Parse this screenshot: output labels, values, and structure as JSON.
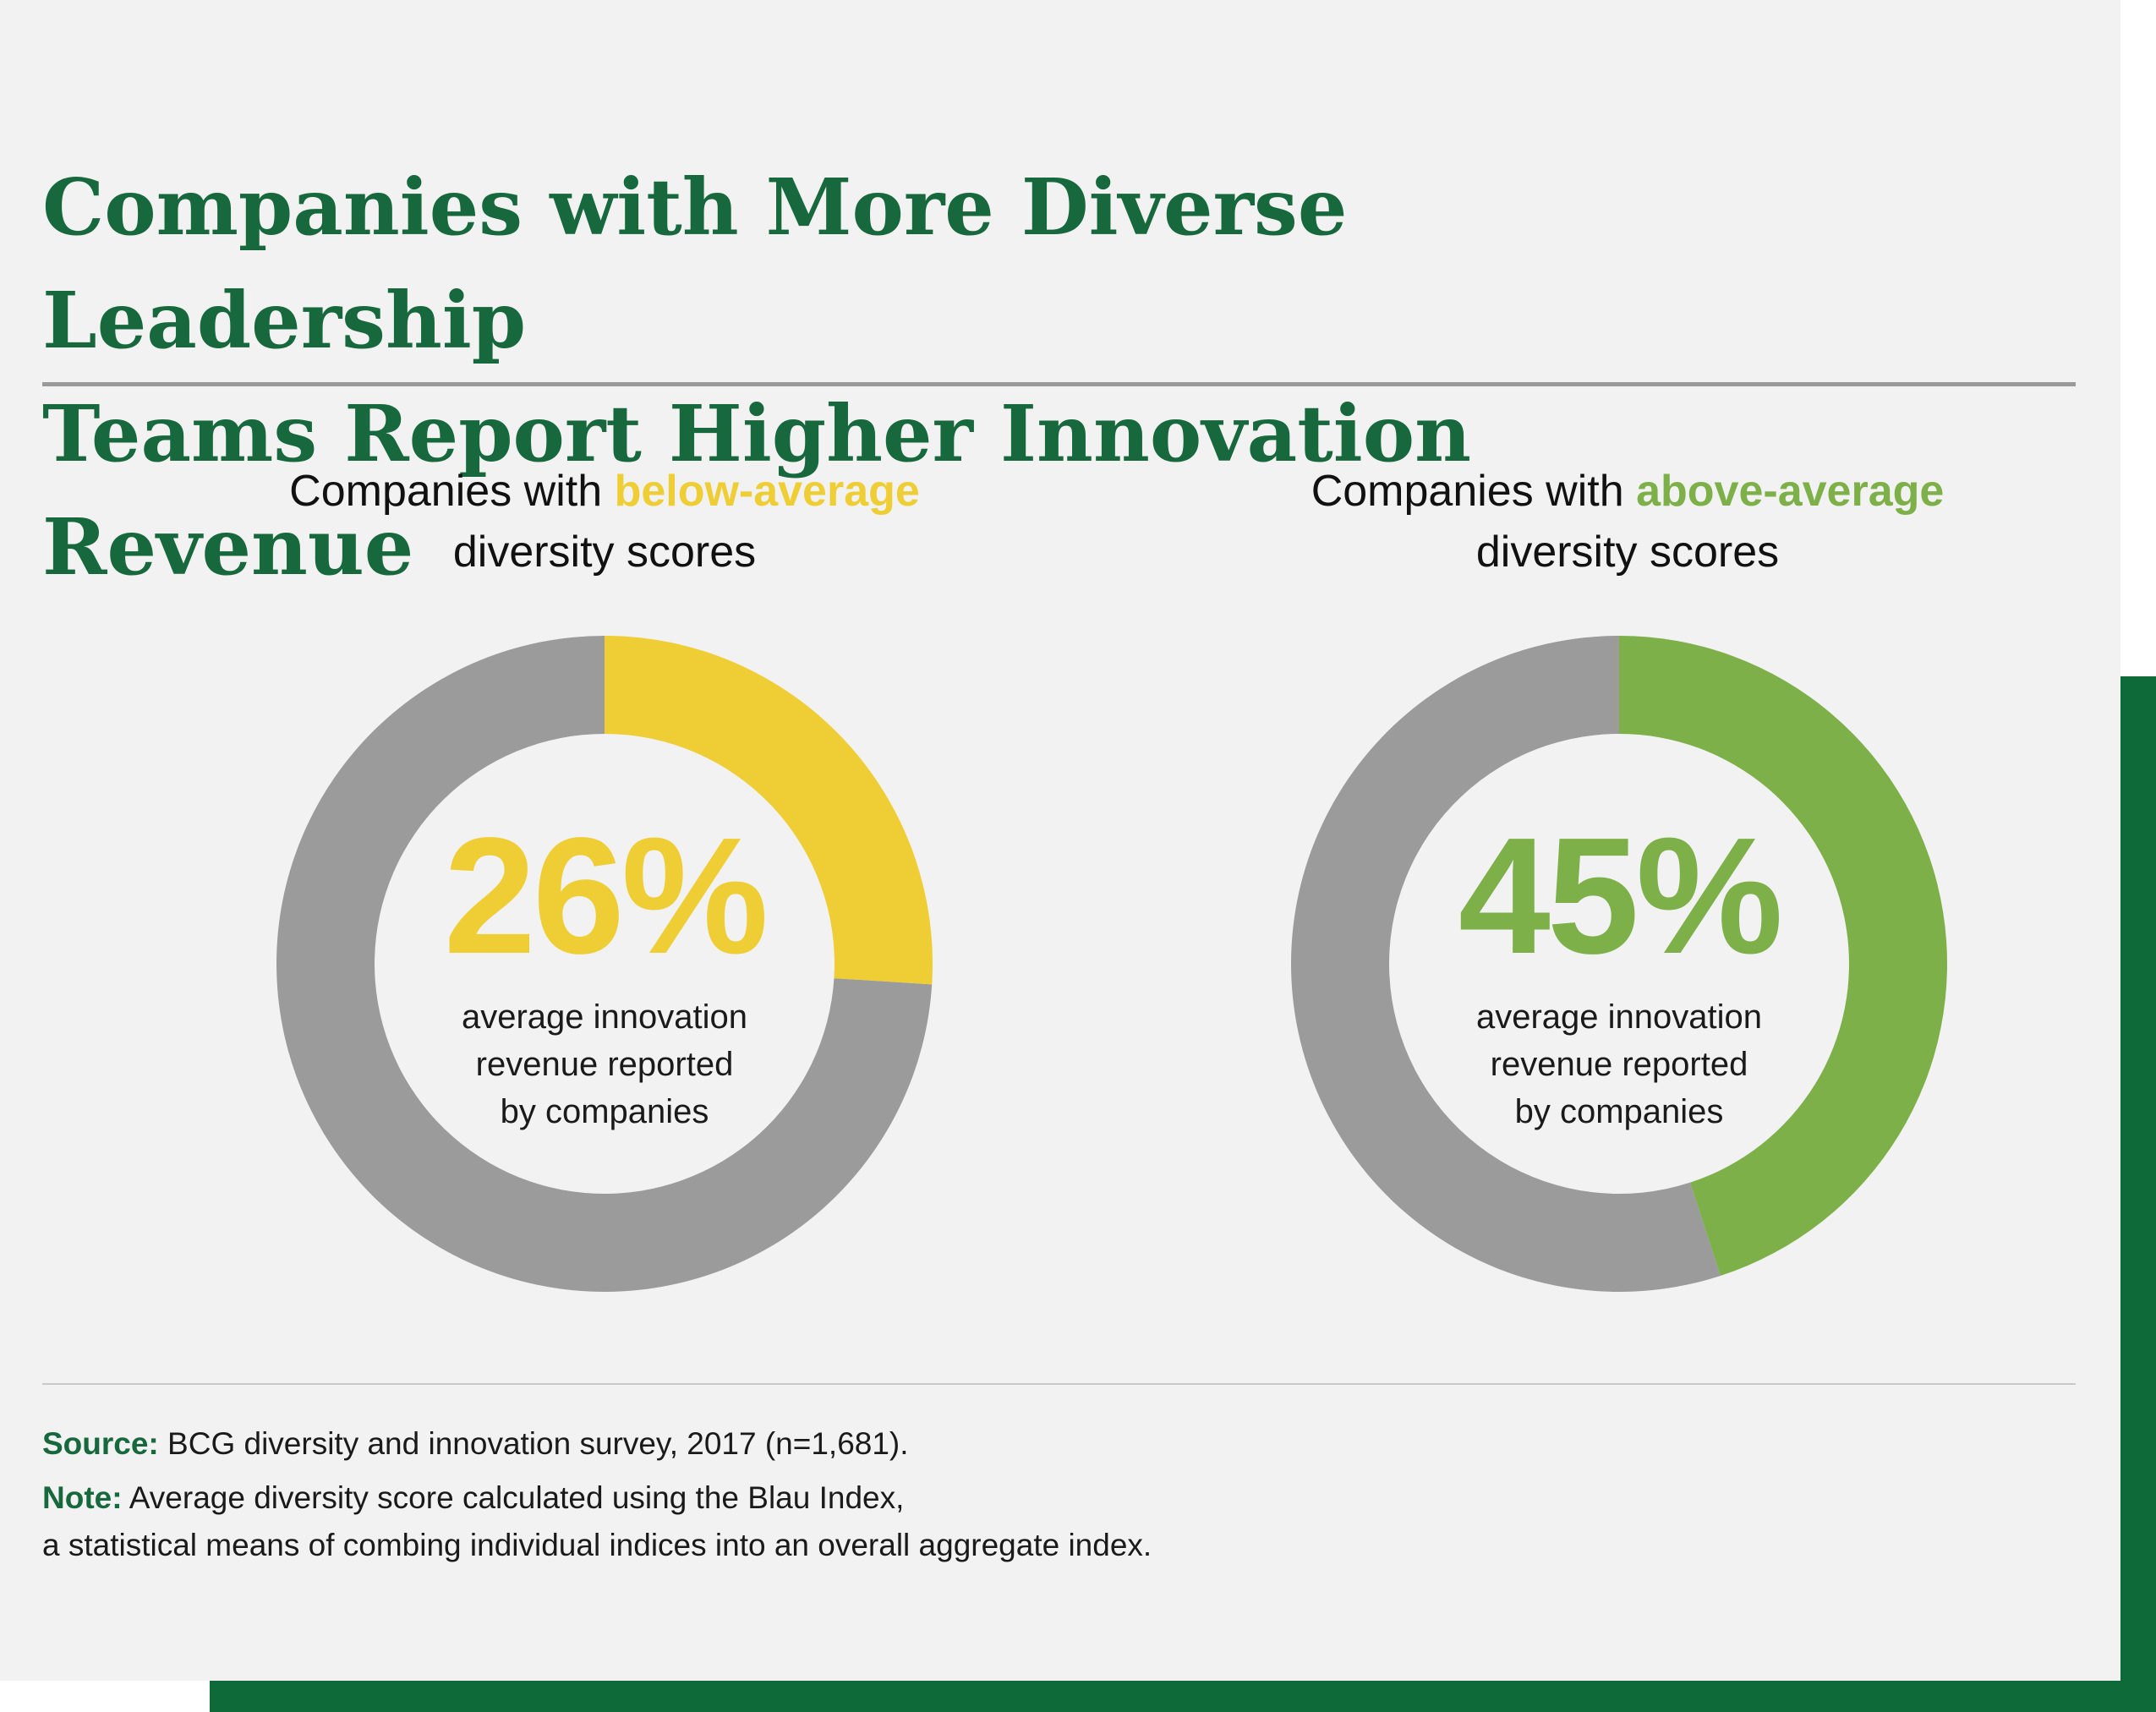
{
  "title": {
    "line1": "Companies with More Diverse Leadership",
    "line2": "Teams Report Higher Innovation Revenue"
  },
  "colors": {
    "title_green": "#17683d",
    "below_yellow": "#efcd34",
    "above_green": "#7db049",
    "remainder_gray": "#9b9b9b",
    "background": "#f1f2f1",
    "frame_green": "#0f6a3a"
  },
  "chart_data": [
    {
      "type": "pie",
      "style": "donut",
      "caption_prefix": "Companies with ",
      "caption_highlight": "below-average",
      "caption_line2": "diversity scores",
      "value": 26,
      "value_label": "26%",
      "center_text": [
        "average innovation",
        "revenue reported",
        "by companies"
      ],
      "slices": [
        {
          "value": 26,
          "color": "#efcd34"
        },
        {
          "value": 74,
          "color": "#9b9b9b"
        }
      ]
    },
    {
      "type": "pie",
      "style": "donut",
      "caption_prefix": "Companies with ",
      "caption_highlight": "above-average",
      "caption_line2": "diversity scores",
      "value": 45,
      "value_label": "45%",
      "center_text": [
        "average innovation",
        "revenue reported",
        "by companies"
      ],
      "slices": [
        {
          "value": 45,
          "color": "#7db049"
        },
        {
          "value": 55,
          "color": "#9b9b9b"
        }
      ]
    }
  ],
  "footer": {
    "source_label": "Source:",
    "source_text": " BCG diversity and innovation survey, 2017 (n=1,681).",
    "note_label": "Note:",
    "note_text": " Average diversity score calculated using the Blau Index,",
    "note_line2": "a statistical means of combing individual indices into an overall aggregate index."
  }
}
